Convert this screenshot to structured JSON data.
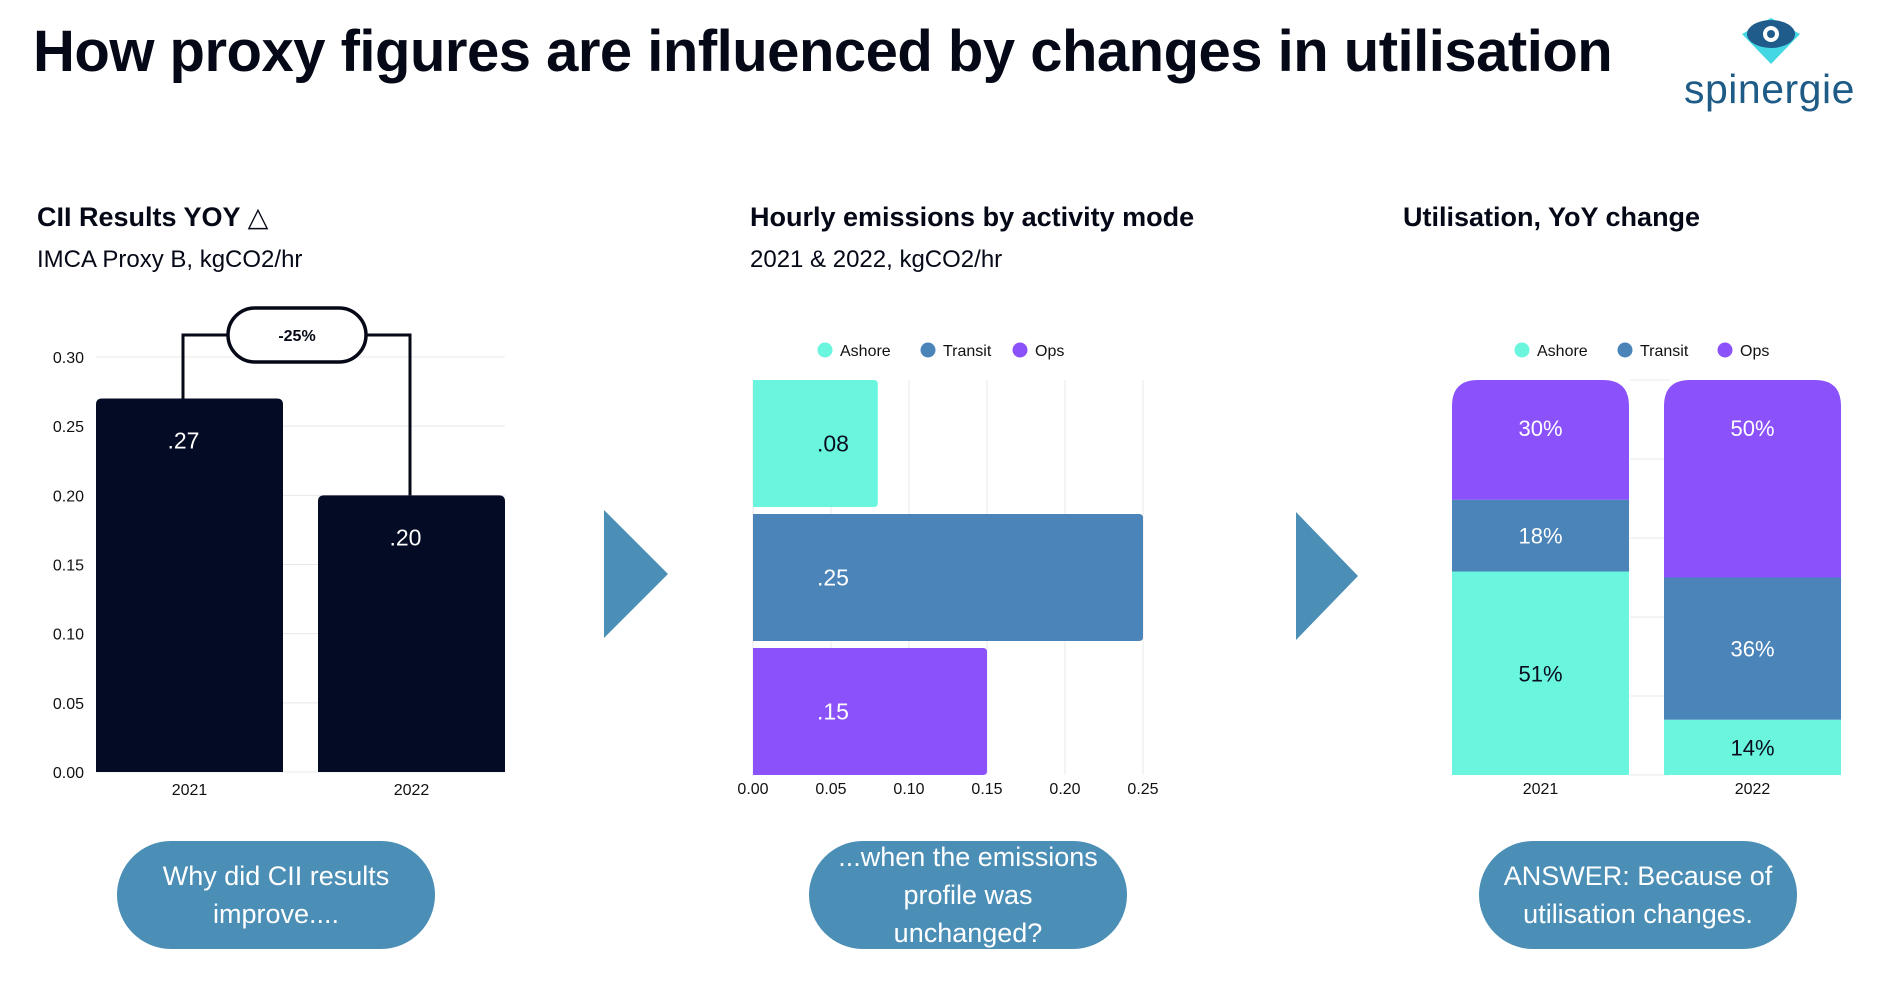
{
  "title": "How proxy figures are influenced by changes in utilisation",
  "logo": {
    "text": "spinergie"
  },
  "colors": {
    "navy": "#040b24",
    "ashore": "#6af6de",
    "transit": "#4a84b8",
    "ops": "#8b52fb",
    "arrow": "#4b8eb6",
    "pill": "#4b8eb6",
    "grid": "#e8e8e8"
  },
  "panels": [
    {
      "title": "CII Results YOY △",
      "subtitle": "IMCA Proxy B, kgCO2/hr"
    },
    {
      "title": "Hourly emissions by activity mode",
      "subtitle": "2021 & 2022, kgCO2/hr"
    },
    {
      "title": "Utilisation, YoY change",
      "subtitle": ""
    }
  ],
  "captions": [
    "Why did CII results improve....",
    "...when the emissions profile was unchanged?",
    "ANSWER: Because of utilisation changes."
  ],
  "chart_data": [
    {
      "type": "bar",
      "categories": [
        "2021",
        "2022"
      ],
      "values": [
        0.27,
        0.2
      ],
      "value_labels": [
        ".27",
        ".20"
      ],
      "ylim": [
        0,
        0.3
      ],
      "yticks": [
        "0.00",
        "0.05",
        "0.10",
        "0.15",
        "0.20",
        "0.25",
        "0.30"
      ],
      "annotation": "-25%",
      "grid": true
    },
    {
      "type": "bar",
      "orientation": "horizontal",
      "categories": [
        "Ashore",
        "Transit",
        "Ops"
      ],
      "values": [
        0.08,
        0.25,
        0.15
      ],
      "value_labels": [
        ".08",
        ".25",
        ".15"
      ],
      "xlim": [
        0,
        0.25
      ],
      "xticks": [
        "0.00",
        "0.05",
        "0.10",
        "0.15",
        "0.20",
        "0.25"
      ],
      "legend": [
        "Ashore",
        "Transit",
        "Ops"
      ],
      "legend_position": "top",
      "grid": true
    },
    {
      "type": "bar",
      "stacked": true,
      "categories": [
        "2021",
        "2022"
      ],
      "series": [
        {
          "name": "Ashore",
          "values": [
            51,
            14
          ],
          "labels": [
            "51%",
            "14%"
          ]
        },
        {
          "name": "Transit",
          "values": [
            18,
            36
          ],
          "labels": [
            "18%",
            "36%"
          ]
        },
        {
          "name": "Ops",
          "values": [
            30,
            50
          ],
          "labels": [
            "30%",
            "50%"
          ]
        }
      ],
      "legend_position": "top",
      "grid": true
    }
  ]
}
